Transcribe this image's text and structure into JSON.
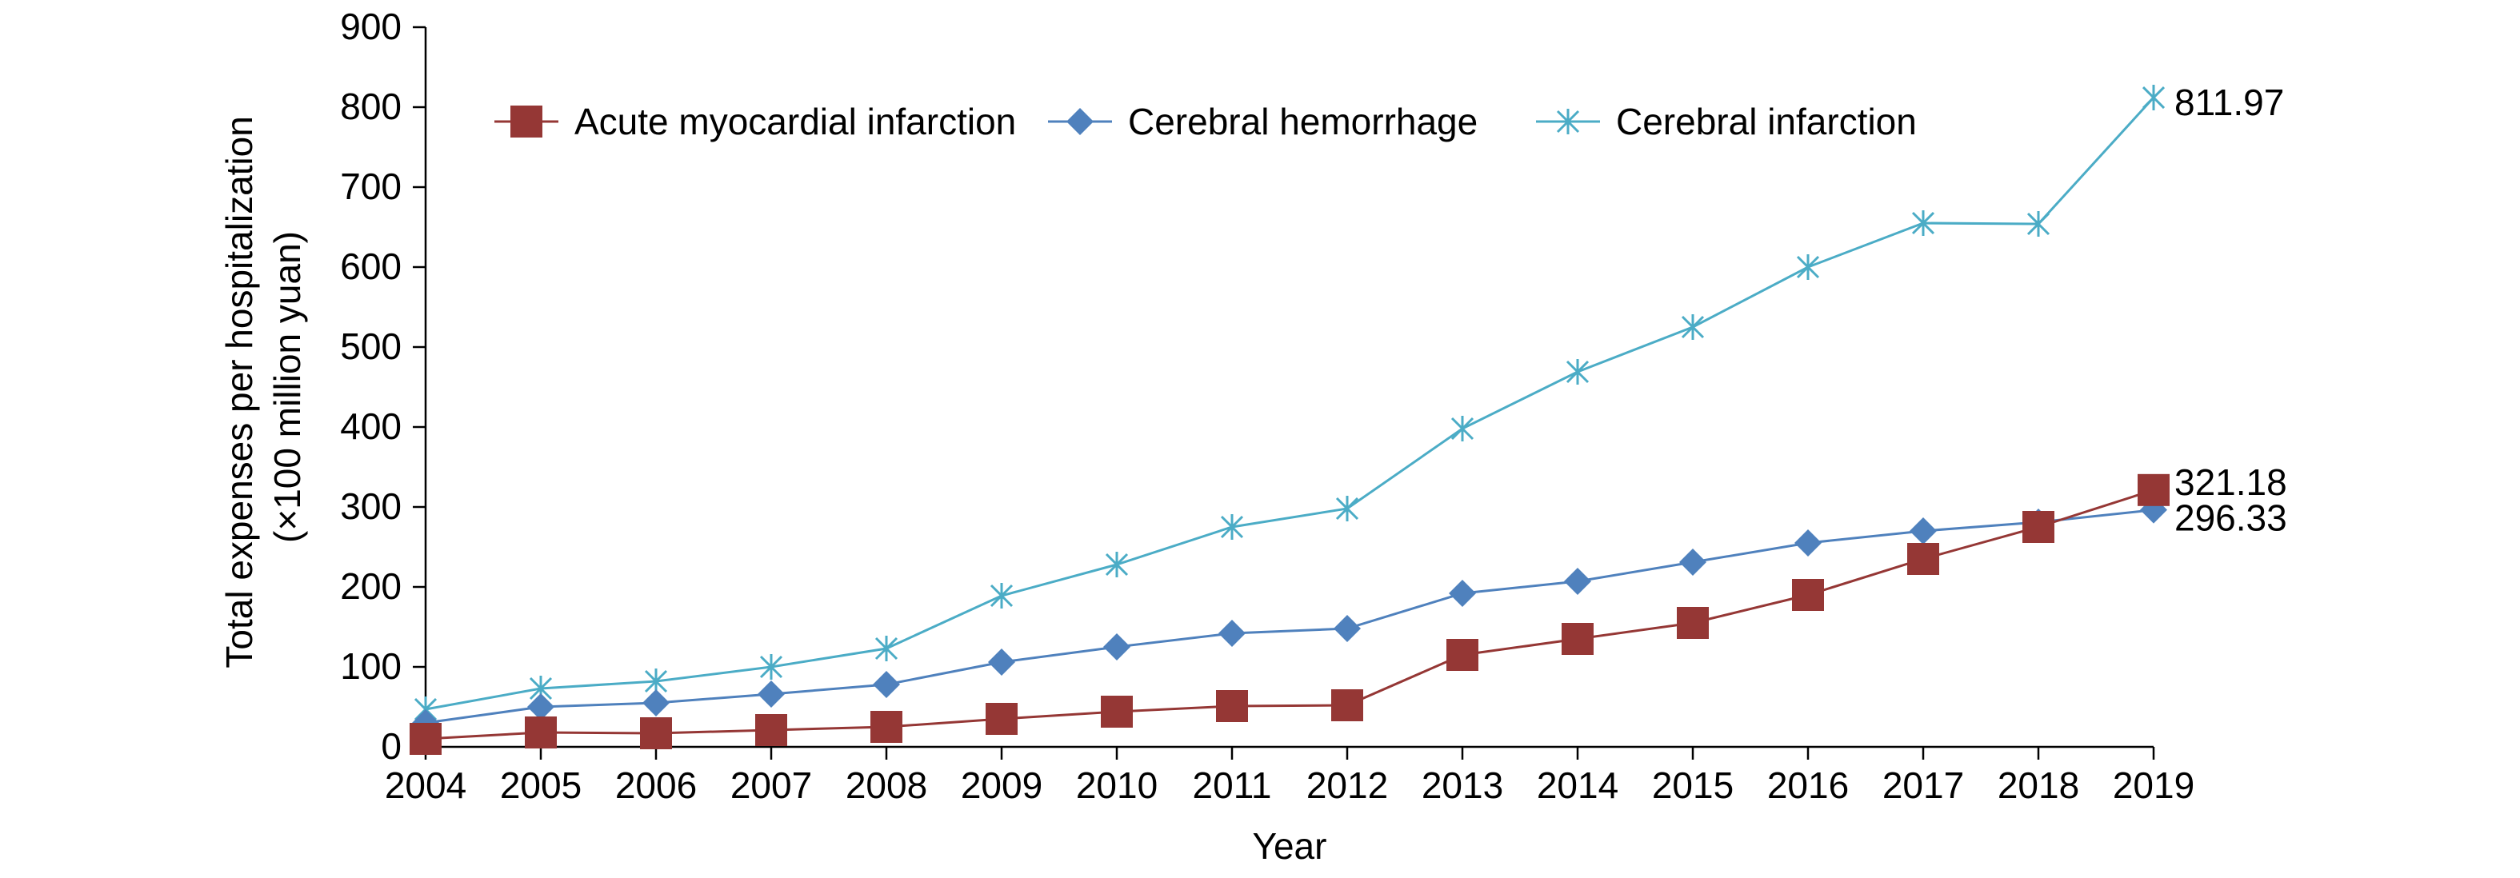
{
  "chart_data": {
    "type": "line",
    "title": "",
    "xlabel": "Year",
    "ylabel_lines": [
      "Total expenses per hospitalization",
      "(×100 million yuan)"
    ],
    "ylim": [
      0,
      900
    ],
    "yticks": [
      0,
      100,
      200,
      300,
      400,
      500,
      600,
      700,
      800,
      900
    ],
    "ytick_labels": [
      "0",
      "100",
      "200",
      "300",
      "400",
      "500",
      "600",
      "700",
      "800",
      "900"
    ],
    "x": [
      "2004",
      "2005",
      "2006",
      "2007",
      "2008",
      "2009",
      "2010",
      "2011",
      "2012",
      "2013",
      "2014",
      "2015",
      "2016",
      "2017",
      "2018",
      "2019"
    ],
    "grid": false,
    "legend_position": "top",
    "series": [
      {
        "name": "Acute myocardial infarction",
        "marker": "square",
        "color": "#953735",
        "values": [
          10,
          18,
          17,
          21,
          25,
          35,
          44,
          51,
          52,
          115,
          135,
          155,
          190,
          235,
          275,
          321.18
        ],
        "end_label": "321.18"
      },
      {
        "name": "Cerebral hemorrhage",
        "marker": "diamond",
        "color": "#4f81bd",
        "values": [
          30,
          50,
          55,
          66,
          78,
          106,
          125,
          142,
          148,
          192,
          207,
          231,
          255,
          270,
          281,
          296.33
        ],
        "end_label": "296.33"
      },
      {
        "name": "Cerebral infarction",
        "marker": "asterisk",
        "color": "#4bacc6",
        "values": [
          47,
          73,
          82,
          100,
          123,
          189,
          228,
          275,
          298,
          398,
          469,
          525,
          600,
          655,
          654,
          811.97
        ],
        "end_label": "811.97"
      }
    ]
  }
}
